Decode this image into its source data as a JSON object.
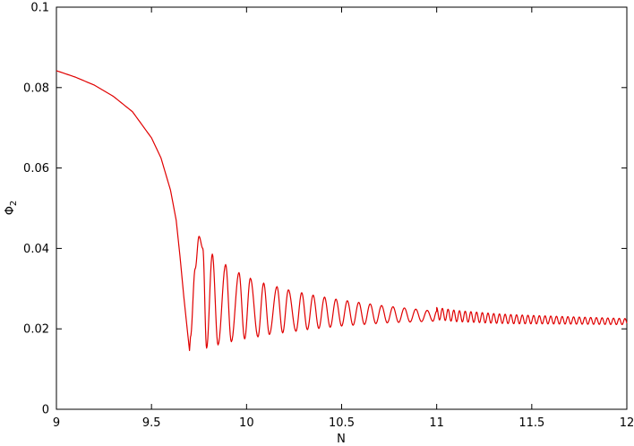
{
  "chart_data": {
    "type": "line",
    "title": "",
    "xlabel": "N",
    "ylabel": "Φ",
    "ylabel_subscript": "2",
    "xlim": [
      9,
      12
    ],
    "ylim": [
      0,
      0.1
    ],
    "xticks": [
      9,
      9.5,
      10,
      10.5,
      11,
      11.5,
      12
    ],
    "xtick_labels": [
      "9",
      "9.5",
      "10",
      "10.5",
      "11",
      "11.5",
      "12"
    ],
    "yticks": [
      0,
      0.02,
      0.04,
      0.06,
      0.08,
      0.1
    ],
    "ytick_labels": [
      "0",
      "0.02",
      "0.04",
      "0.06",
      "0.08",
      "0.1"
    ],
    "grid": false,
    "legend": "none",
    "series": [
      {
        "color": "#e00000",
        "x": [
          9.0,
          9.1,
          9.2,
          9.3,
          9.4,
          9.5,
          9.55,
          9.6,
          9.63,
          9.65,
          9.67,
          9.69,
          9.7,
          9.705,
          9.73,
          9.75,
          9.77,
          9.79,
          9.82,
          9.85,
          9.89,
          9.92,
          9.96,
          9.99,
          10.02,
          10.06,
          10.09,
          10.12,
          10.16,
          10.19,
          10.22,
          10.26,
          10.29,
          10.32,
          10.35,
          10.38,
          10.41,
          10.44,
          10.47,
          10.5,
          10.53,
          10.56,
          10.59,
          10.62,
          10.65,
          10.68,
          10.71,
          10.74,
          10.77,
          10.8,
          10.83,
          10.86,
          10.89,
          10.92,
          10.95,
          10.98,
          11.0,
          11.1,
          11.2,
          11.3,
          11.4,
          11.5,
          11.6,
          11.7,
          11.8,
          11.9,
          12.0
        ],
        "y": [
          0.0842,
          0.0826,
          0.0806,
          0.0778,
          0.074,
          0.0675,
          0.0625,
          0.0545,
          0.047,
          0.038,
          0.028,
          0.019,
          0.0146,
          0.018,
          0.035,
          0.043,
          0.04,
          0.0152,
          0.0386,
          0.016,
          0.036,
          0.0168,
          0.034,
          0.0175,
          0.0326,
          0.018,
          0.0314,
          0.0186,
          0.0305,
          0.019,
          0.0297,
          0.0194,
          0.029,
          0.0198,
          0.0284,
          0.0201,
          0.0279,
          0.0204,
          0.0274,
          0.0207,
          0.027,
          0.0209,
          0.0266,
          0.0211,
          0.0262,
          0.0213,
          0.0258,
          0.0215,
          0.0255,
          0.0216,
          0.0252,
          0.0217,
          0.0249,
          0.0218,
          0.0246,
          0.0219,
          0.0244,
          0.0238,
          0.0235,
          0.0232,
          0.023,
          0.0229,
          0.0228,
          0.0227,
          0.0226,
          0.0225,
          0.0224
        ]
      }
    ]
  }
}
